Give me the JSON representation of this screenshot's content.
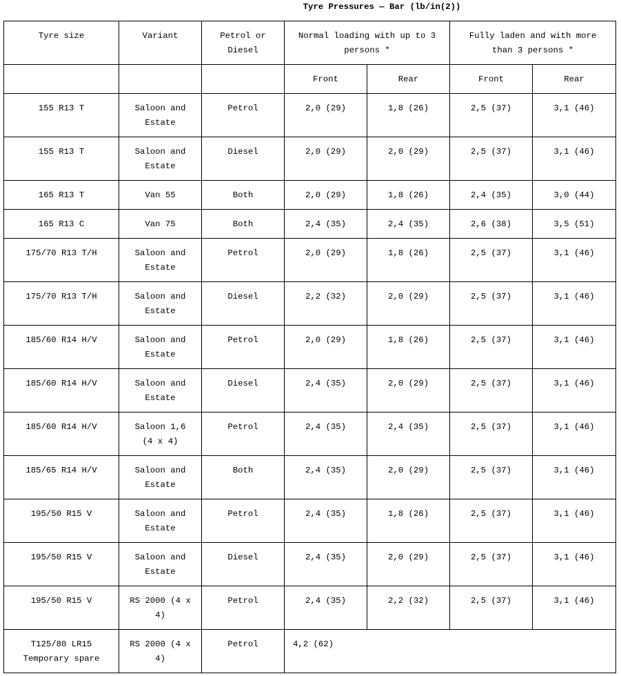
{
  "title": "Tyre Pressures — Bar (lb/in(2))",
  "headers": {
    "tyre_size": "Tyre size",
    "variant": "Variant",
    "fuel": "Petrol or Diesel",
    "normal": "Normal loading with up to 3 persons *",
    "laden": "Fully laden and with more than 3 persons *",
    "front": "Front",
    "rear": "Rear"
  },
  "rows": [
    {
      "size": "155 R13 T",
      "variant": "Saloon and Estate",
      "fuel": "Petrol",
      "nf": "2,0 (29)",
      "nr": "1,8 (26)",
      "lf": "2,5 (37)",
      "lr": "3,1 (46)"
    },
    {
      "size": "155 R13 T",
      "variant": "Saloon and Estate",
      "fuel": "Diesel",
      "nf": "2,0 (29)",
      "nr": "2,0 (29)",
      "lf": "2,5 (37)",
      "lr": "3,1 (46)"
    },
    {
      "size": "165 R13 T",
      "variant": "Van 55",
      "fuel": "Both",
      "nf": "2,0 (29)",
      "nr": "1,8 (26)",
      "lf": "2,4 (35)",
      "lr": "3,0 (44)"
    },
    {
      "size": "165 R13 C",
      "variant": "Van 75",
      "fuel": "Both",
      "nf": "2,4 (35)",
      "nr": "2,4 (35)",
      "lf": "2,6 (38)",
      "lr": "3,5 (51)"
    },
    {
      "size": "175/70 R13 T/H",
      "variant": "Saloon and Estate",
      "fuel": "Petrol",
      "nf": "2,0 (29)",
      "nr": "1,8 (26)",
      "lf": "2,5 (37)",
      "lr": "3,1 (46)"
    },
    {
      "size": "175/70 R13 T/H",
      "variant": "Saloon and Estate",
      "fuel": "Diesel",
      "nf": "2,2 (32)",
      "nr": "2,0 (29)",
      "lf": "2,5 (37)",
      "lr": "3,1 (46)"
    },
    {
      "size": "185/60 R14 H/V",
      "variant": "Saloon and Estate",
      "fuel": "Petrol",
      "nf": "2,0 (29)",
      "nr": "1,8 (26)",
      "lf": "2,5 (37)",
      "lr": "3,1 (46)"
    },
    {
      "size": "185/60 R14 H/V",
      "variant": "Saloon and Estate",
      "fuel": "Diesel",
      "nf": "2,4 (35)",
      "nr": "2,0 (29)",
      "lf": "2,5 (37)",
      "lr": "3,1 (46)"
    },
    {
      "size": "185/60 R14 H/V",
      "variant": "Saloon 1,6 (4 x 4)",
      "fuel": "Petrol",
      "nf": "2,4 (35)",
      "nr": "2,4 (35)",
      "lf": "2,5 (37)",
      "lr": "3,1 (46)"
    },
    {
      "size": "185/65 R14 H/V",
      "variant": "Saloon and Estate",
      "fuel": "Both",
      "nf": "2,4 (35)",
      "nr": "2,0 (29)",
      "lf": "2,5 (37)",
      "lr": "3,1 (46)"
    },
    {
      "size": "195/50 R15 V",
      "variant": "Saloon and Estate",
      "fuel": "Petrol",
      "nf": "2,4 (35)",
      "nr": "1,8 (26)",
      "lf": "2,5 (37)",
      "lr": "3,1 (46)"
    },
    {
      "size": "195/50 R15 V",
      "variant": "Saloon and Estate",
      "fuel": "Diesel",
      "nf": "2,4 (35)",
      "nr": "2,0 (29)",
      "lf": "2,5 (37)",
      "lr": "3,1 (46)"
    },
    {
      "size": "195/50 R15 V",
      "variant": "RS 2000 (4 x 4)",
      "fuel": "Petrol",
      "nf": "2,4 (35)",
      "nr": "2,2 (32)",
      "lf": "2,5 (37)",
      "lr": "3,1 (46)"
    }
  ],
  "spare": {
    "size": "T125/80 LR15 Temporary spare",
    "variant": "RS 2000 (4 x 4)",
    "fuel": "Petrol",
    "value": "4,2 (62)"
  }
}
